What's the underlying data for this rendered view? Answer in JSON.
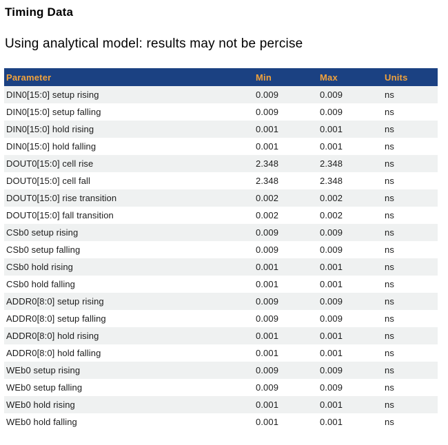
{
  "page": {
    "title": "Timing Data",
    "subtitle": "Using analytical model: results may not be percise"
  },
  "table": {
    "columns": [
      "Parameter",
      "Min",
      "Max",
      "Units"
    ],
    "rows": [
      {
        "parameter": "DIN0[15:0] setup rising",
        "min": "0.009",
        "max": "0.009",
        "units": "ns"
      },
      {
        "parameter": "DIN0[15:0] setup falling",
        "min": "0.009",
        "max": "0.009",
        "units": "ns"
      },
      {
        "parameter": "DIN0[15:0] hold rising",
        "min": "0.001",
        "max": "0.001",
        "units": "ns"
      },
      {
        "parameter": "DIN0[15:0] hold falling",
        "min": "0.001",
        "max": "0.001",
        "units": "ns"
      },
      {
        "parameter": "DOUT0[15:0] cell rise",
        "min": "2.348",
        "max": "2.348",
        "units": "ns"
      },
      {
        "parameter": "DOUT0[15:0] cell fall",
        "min": "2.348",
        "max": "2.348",
        "units": "ns"
      },
      {
        "parameter": "DOUT0[15:0] rise transition",
        "min": "0.002",
        "max": "0.002",
        "units": "ns"
      },
      {
        "parameter": "DOUT0[15:0] fall transition",
        "min": "0.002",
        "max": "0.002",
        "units": "ns"
      },
      {
        "parameter": "CSb0 setup rising",
        "min": "0.009",
        "max": "0.009",
        "units": "ns"
      },
      {
        "parameter": "CSb0 setup falling",
        "min": "0.009",
        "max": "0.009",
        "units": "ns"
      },
      {
        "parameter": "CSb0 hold rising",
        "min": "0.001",
        "max": "0.001",
        "units": "ns"
      },
      {
        "parameter": "CSb0 hold falling",
        "min": "0.001",
        "max": "0.001",
        "units": "ns"
      },
      {
        "parameter": "ADDR0[8:0] setup rising",
        "min": "0.009",
        "max": "0.009",
        "units": "ns"
      },
      {
        "parameter": "ADDR0[8:0] setup falling",
        "min": "0.009",
        "max": "0.009",
        "units": "ns"
      },
      {
        "parameter": "ADDR0[8:0] hold rising",
        "min": "0.001",
        "max": "0.001",
        "units": "ns"
      },
      {
        "parameter": "ADDR0[8:0] hold falling",
        "min": "0.001",
        "max": "0.001",
        "units": "ns"
      },
      {
        "parameter": "WEb0 setup rising",
        "min": "0.009",
        "max": "0.009",
        "units": "ns"
      },
      {
        "parameter": "WEb0 setup falling",
        "min": "0.009",
        "max": "0.009",
        "units": "ns"
      },
      {
        "parameter": "WEb0 hold rising",
        "min": "0.001",
        "max": "0.001",
        "units": "ns"
      },
      {
        "parameter": "WEb0 hold falling",
        "min": "0.001",
        "max": "0.001",
        "units": "ns"
      }
    ]
  },
  "colors": {
    "header_bg": "#1B4182",
    "header_text": "#F0A23C",
    "row_alt_bg": "#EFF1F1",
    "body_text": "#1C1C1C"
  }
}
